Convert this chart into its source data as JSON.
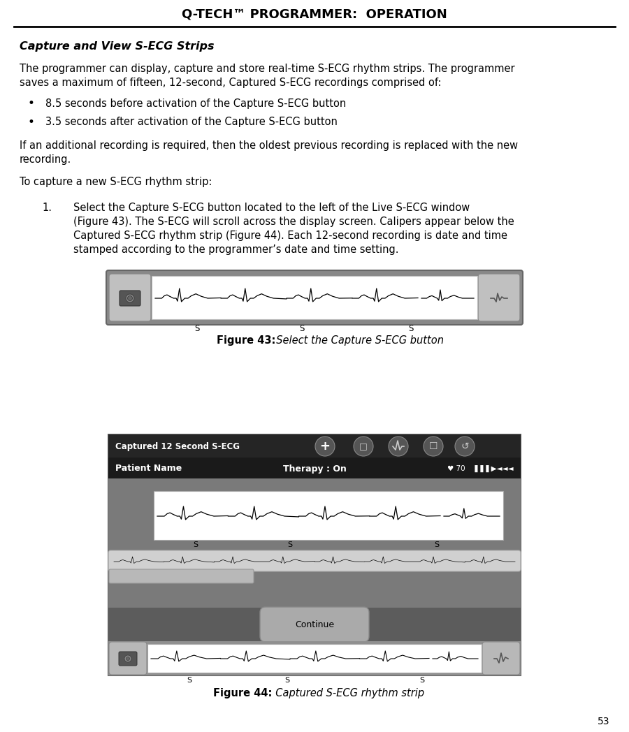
{
  "page_title": "Q-TECH™ PROGRAMMER:  OPERATION",
  "section_title": "Capture and View S-ECG Strips",
  "para1_line1": "The programmer can display, capture and store real-time S-ECG rhythm strips. The programmer",
  "para1_line2": "saves a maximum of fifteen, 12-second, Captured S-ECG recordings comprised of:",
  "bullet1": "8.5 seconds before activation of the Capture S-ECG button",
  "bullet2": "3.5 seconds after activation of the Capture S-ECG button",
  "para2_line1": "If an additional recording is required, then the oldest previous recording is replaced with the new",
  "para2_line2": "recording.",
  "para3": "To capture a new S-ECG rhythm strip:",
  "step1_lines": [
    "Select the Capture S-ECG button located to the left of the Live S-ECG window",
    "(Figure 43). The S-ECG will scroll across the display screen. Calipers appear below the",
    "Captured S-ECG rhythm strip (Figure 44). Each 12-second recording is date and time",
    "stamped according to the programmer’s date and time setting."
  ],
  "fig43_bold": "Figure 43:",
  "fig43_italic": "  Select the Capture S-ECG button",
  "fig44_bold": "Figure 44:",
  "fig44_italic": "  Captured S-ECG rhythm strip",
  "page_number": "53",
  "bg": "#ffffff",
  "fig_outer_bg": "#888888",
  "fig_outer_edge": "#666666",
  "fig_btn_bg": "#aaaaaa",
  "fig_btn_edge": "#777777",
  "fig_ecg_bg": "#ffffff",
  "fig44_topbar": "#2a2a2a",
  "fig44_patbar": "#1c1c1c",
  "fig44_body": "#7a7a7a",
  "fig44_scrollbar_bg": "#c8c8c8",
  "fig44_scroll_handle": "#b0b0b0",
  "fig44_action_bar": "#5a5a5a",
  "fig44_bottom_bar": "#888888",
  "fig44_bottom_outer": "#666666"
}
